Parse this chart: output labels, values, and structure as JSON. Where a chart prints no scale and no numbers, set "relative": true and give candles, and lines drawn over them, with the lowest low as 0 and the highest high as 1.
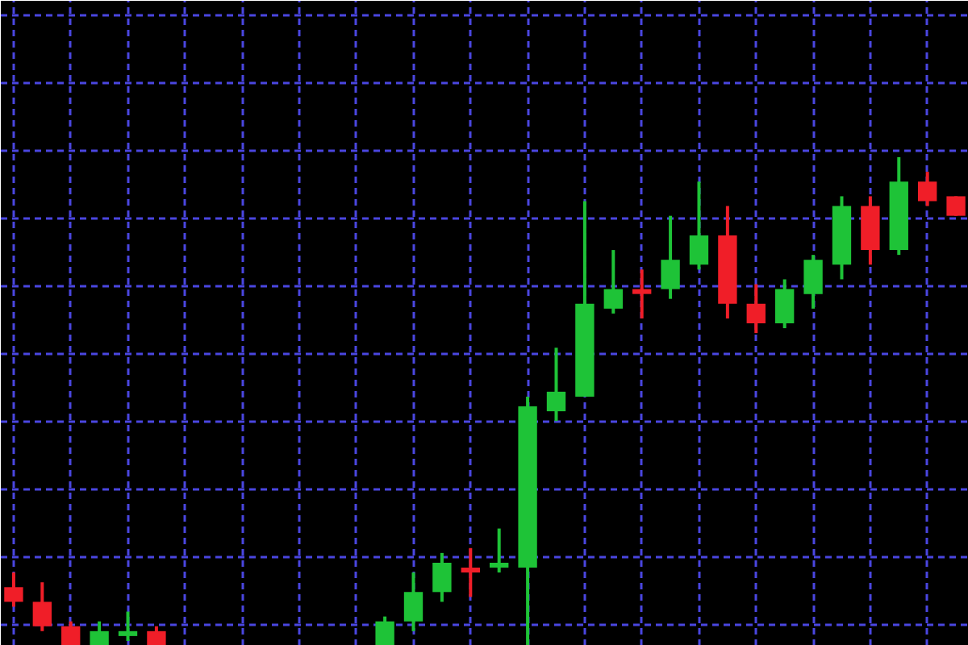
{
  "chart_data": {
    "type": "candlestick",
    "relative": true,
    "grid": true,
    "categories": [
      null,
      null,
      null,
      null,
      null,
      null,
      null,
      null,
      null,
      null,
      null,
      null,
      null,
      null,
      null,
      null,
      null,
      null,
      null,
      null,
      null,
      null,
      null,
      null,
      null,
      null,
      null,
      null,
      null,
      null,
      null,
      null,
      null,
      null
    ],
    "ohlc": [
      [
        0.12,
        0.15,
        0.08,
        0.09
      ],
      [
        0.09,
        0.13,
        0.03,
        0.04
      ],
      [
        0.04,
        0.05,
        0,
        0
      ],
      [
        0,
        0.05,
        0,
        0.03
      ],
      [
        0.02,
        0.07,
        0.01,
        0.03
      ],
      [
        0.03,
        0.04,
        0,
        0
      ],
      null,
      null,
      null,
      null,
      null,
      null,
      null,
      [
        0,
        0.06,
        0,
        0.05
      ],
      [
        0.05,
        0.15,
        0.03,
        0.11
      ],
      [
        0.11,
        0.19,
        0.09,
        0.17
      ],
      [
        0.16,
        0.2,
        0.1,
        0.15
      ],
      [
        0.16,
        0.24,
        0.15,
        0.17
      ],
      [
        0.16,
        0.51,
        0,
        0.49
      ],
      [
        0.48,
        0.61,
        0.46,
        0.52
      ],
      [
        0.51,
        0.91,
        0.51,
        0.7
      ],
      [
        0.69,
        0.81,
        0.68,
        0.73
      ],
      [
        0.73,
        0.77,
        0.67,
        0.72
      ],
      [
        0.73,
        0.88,
        0.71,
        0.79
      ],
      [
        0.78,
        0.95,
        0.77,
        0.84
      ],
      [
        0.84,
        0.9,
        0.67,
        0.7
      ],
      [
        0.7,
        0.74,
        0.64,
        0.66
      ],
      [
        0.66,
        0.75,
        0.65,
        0.73
      ],
      [
        0.72,
        0.8,
        0.69,
        0.79
      ],
      [
        0.78,
        0.92,
        0.75,
        0.9
      ],
      [
        0.9,
        0.92,
        0.78,
        0.81
      ],
      [
        0.81,
        1,
        0.8,
        0.95
      ],
      [
        0.95,
        0.97,
        0.9,
        0.91
      ],
      [
        0.92,
        0.92,
        0.88,
        0.88
      ]
    ],
    "colors": [
      "#f01e28",
      "#f01e28",
      "#f01e28",
      "#1ec337",
      "#1ec337",
      "#f01e28",
      null,
      null,
      null,
      null,
      null,
      null,
      null,
      "#1ec337",
      "#1ec337",
      "#1ec337",
      "#f01e28",
      "#1ec337",
      "#1ec337",
      "#1ec337",
      "#1ec337",
      "#1ec337",
      "#f01e28",
      "#1ec337",
      "#1ec337",
      "#f01e28",
      "#f01e28",
      "#1ec337",
      "#1ec337",
      "#1ec337",
      "#f01e28",
      "#1ec337",
      "#f01e28",
      "#f01e28"
    ]
  }
}
